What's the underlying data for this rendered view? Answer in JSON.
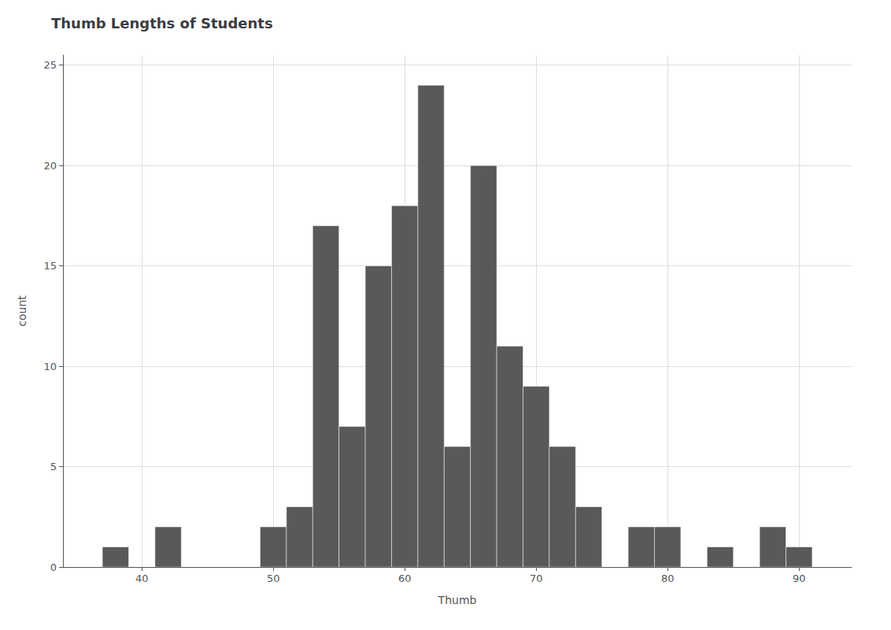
{
  "chart_data": {
    "type": "histogram",
    "title": "Thumb Lengths of Students",
    "xlabel": "Thumb",
    "ylabel": "count",
    "color": "#595959",
    "bins": [
      37,
      39,
      41,
      43,
      45,
      47,
      49,
      51,
      53,
      55,
      57,
      59,
      61,
      63,
      65,
      67,
      69,
      71,
      73,
      75,
      77,
      79,
      81,
      83,
      85,
      87,
      89,
      91,
      93
    ],
    "counts": [
      1,
      0,
      2,
      0,
      0,
      0,
      2,
      3,
      17,
      7,
      15,
      18,
      24,
      6,
      20,
      11,
      9,
      6,
      3,
      0,
      2,
      2,
      0,
      1,
      0,
      2,
      1,
      0
    ],
    "xlim": [
      34,
      94
    ],
    "xticks": [
      40,
      50,
      60,
      70,
      80,
      90
    ],
    "ylim": [
      0,
      25.5
    ],
    "yticks": [
      0,
      5,
      10,
      15,
      20,
      25
    ],
    "grid": true
  }
}
